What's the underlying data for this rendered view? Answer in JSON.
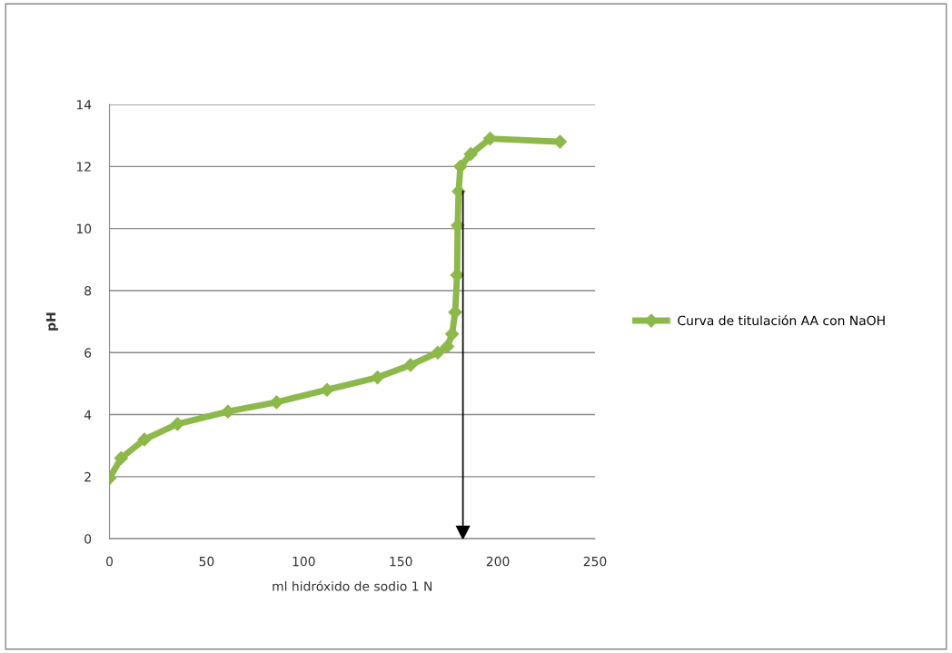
{
  "chart_data": {
    "type": "line",
    "xlabel": "ml hidróxido de sodio 1 N",
    "ylabel": "pH",
    "series": [
      {
        "name": "Curva de titulación AA con NaOH",
        "color": "#8db84a",
        "x": [
          0,
          6,
          18,
          35,
          61,
          86,
          112,
          138,
          155,
          169,
          174,
          176.4,
          178,
          179,
          179.3,
          179.8,
          180.7,
          186,
          196,
          232
        ],
        "values": [
          1.95,
          2.6,
          3.2,
          3.7,
          4.1,
          4.4,
          4.8,
          5.2,
          5.6,
          6.0,
          6.2,
          6.6,
          7.3,
          8.5,
          10.1,
          11.2,
          12.0,
          12.4,
          12.9,
          12.8
        ]
      }
    ],
    "xlim": [
      0,
      250
    ],
    "xticks": [
      0,
      50,
      100,
      150,
      200,
      250
    ],
    "ylim": [
      0,
      14
    ],
    "yticks": [
      0,
      2,
      4,
      6,
      8,
      10,
      12,
      14
    ],
    "grid": "y",
    "legend": "right",
    "marker": "diamond",
    "line_style": "solid",
    "ref_lines": [
      {
        "axis": "x",
        "value": 182,
        "color": "#000000"
      }
    ]
  }
}
